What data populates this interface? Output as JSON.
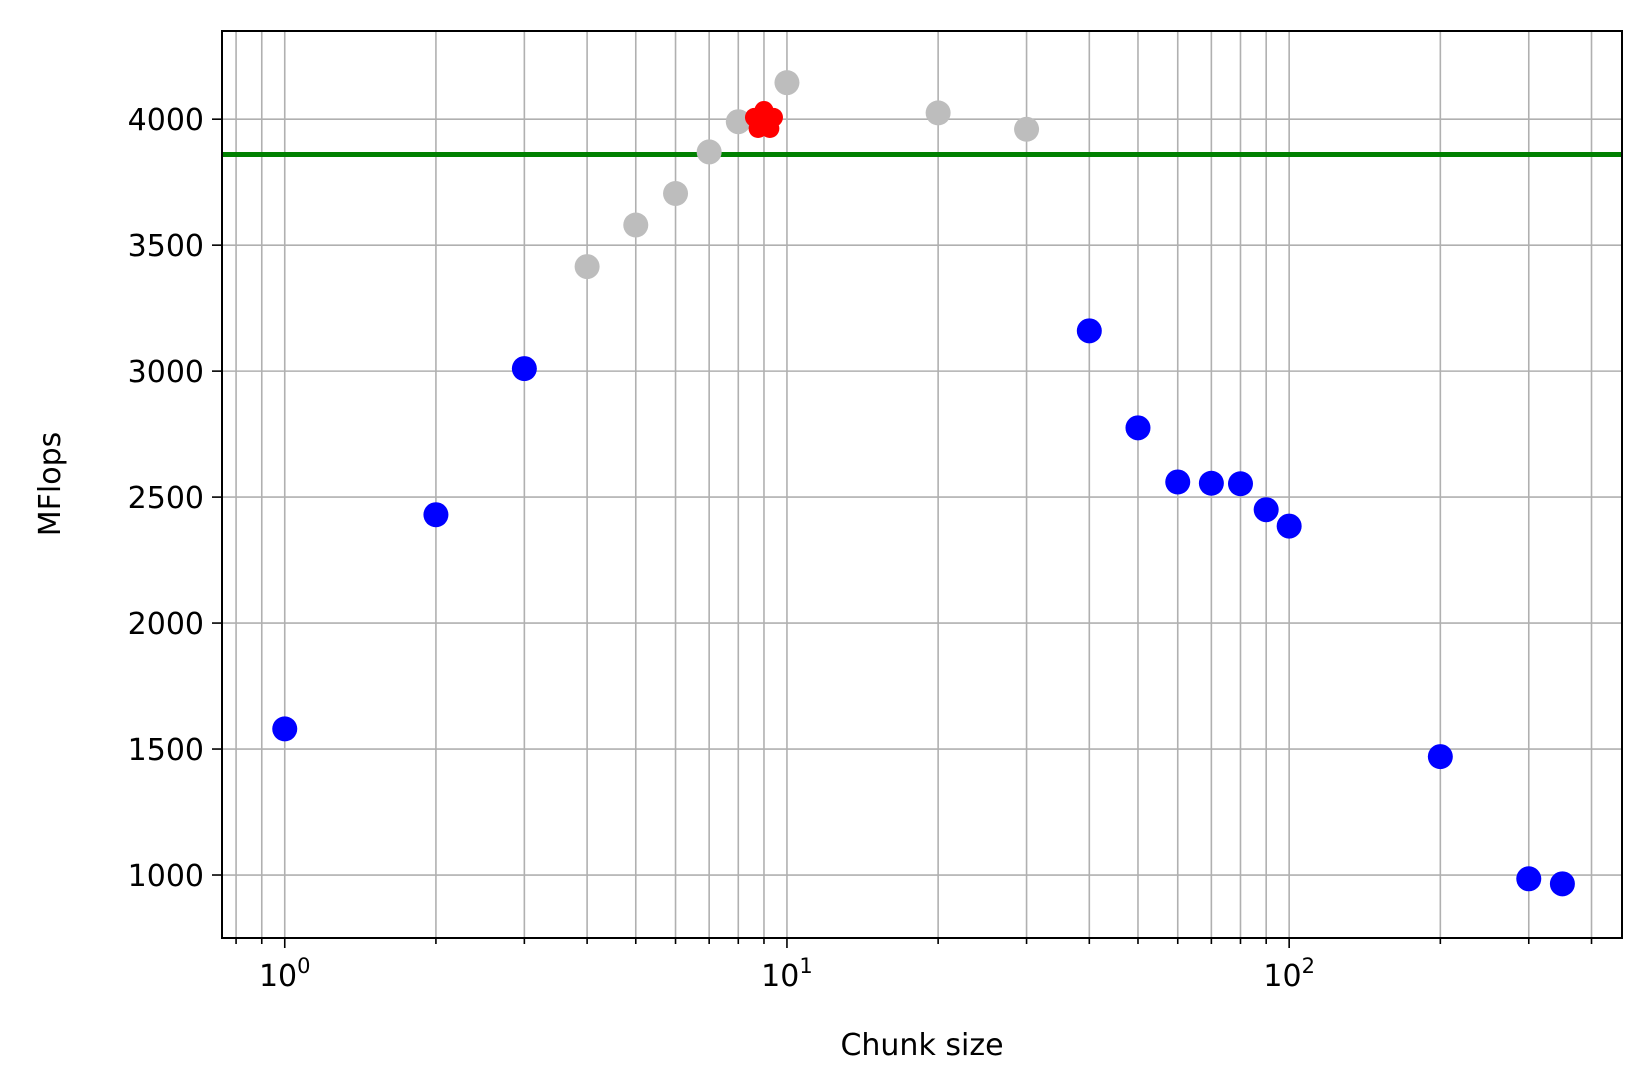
{
  "chart_data": {
    "type": "scatter",
    "xlabel": "Chunk size",
    "ylabel": "MFlops",
    "xscale": "log",
    "xlim": [
      0.75,
      460
    ],
    "ylim": [
      750,
      4350
    ],
    "grid": true,
    "grid_minor_x": true,
    "x_ticks": [
      1,
      10,
      100
    ],
    "x_tick_labels": [
      {
        "base": "10",
        "exp": "0"
      },
      {
        "base": "10",
        "exp": "1"
      },
      {
        "base": "10",
        "exp": "2"
      }
    ],
    "y_ticks": [
      1000,
      1500,
      2000,
      2500,
      3000,
      3500,
      4000
    ],
    "y_tick_labels": [
      "1000",
      "1500",
      "2000",
      "2500",
      "3000",
      "3500",
      "4000"
    ],
    "reference_line": {
      "y": 3860,
      "color": "#008000"
    },
    "series": [
      {
        "color": "#0000ff",
        "marker": "circle",
        "points": [
          {
            "x": 1,
            "y": 1580
          },
          {
            "x": 2,
            "y": 2430
          },
          {
            "x": 3,
            "y": 3010
          },
          {
            "x": 40,
            "y": 3160
          },
          {
            "x": 50,
            "y": 2775
          },
          {
            "x": 60,
            "y": 2560
          },
          {
            "x": 70,
            "y": 2555
          },
          {
            "x": 80,
            "y": 2553
          },
          {
            "x": 90,
            "y": 2450
          },
          {
            "x": 100,
            "y": 2385
          },
          {
            "x": 200,
            "y": 1470
          },
          {
            "x": 300,
            "y": 985
          },
          {
            "x": 350,
            "y": 965
          }
        ]
      },
      {
        "color": "#bdbdbd",
        "marker": "circle",
        "points": [
          {
            "x": 4,
            "y": 3415
          },
          {
            "x": 5,
            "y": 3580
          },
          {
            "x": 6,
            "y": 3705
          },
          {
            "x": 7,
            "y": 3870
          },
          {
            "x": 8,
            "y": 3990
          },
          {
            "x": 10,
            "y": 4145
          },
          {
            "x": 20,
            "y": 4025
          },
          {
            "x": 30,
            "y": 3960
          }
        ]
      },
      {
        "color": "#ff0000",
        "marker": "flower",
        "points": [
          {
            "x": 9,
            "y": 3995
          }
        ]
      }
    ]
  }
}
